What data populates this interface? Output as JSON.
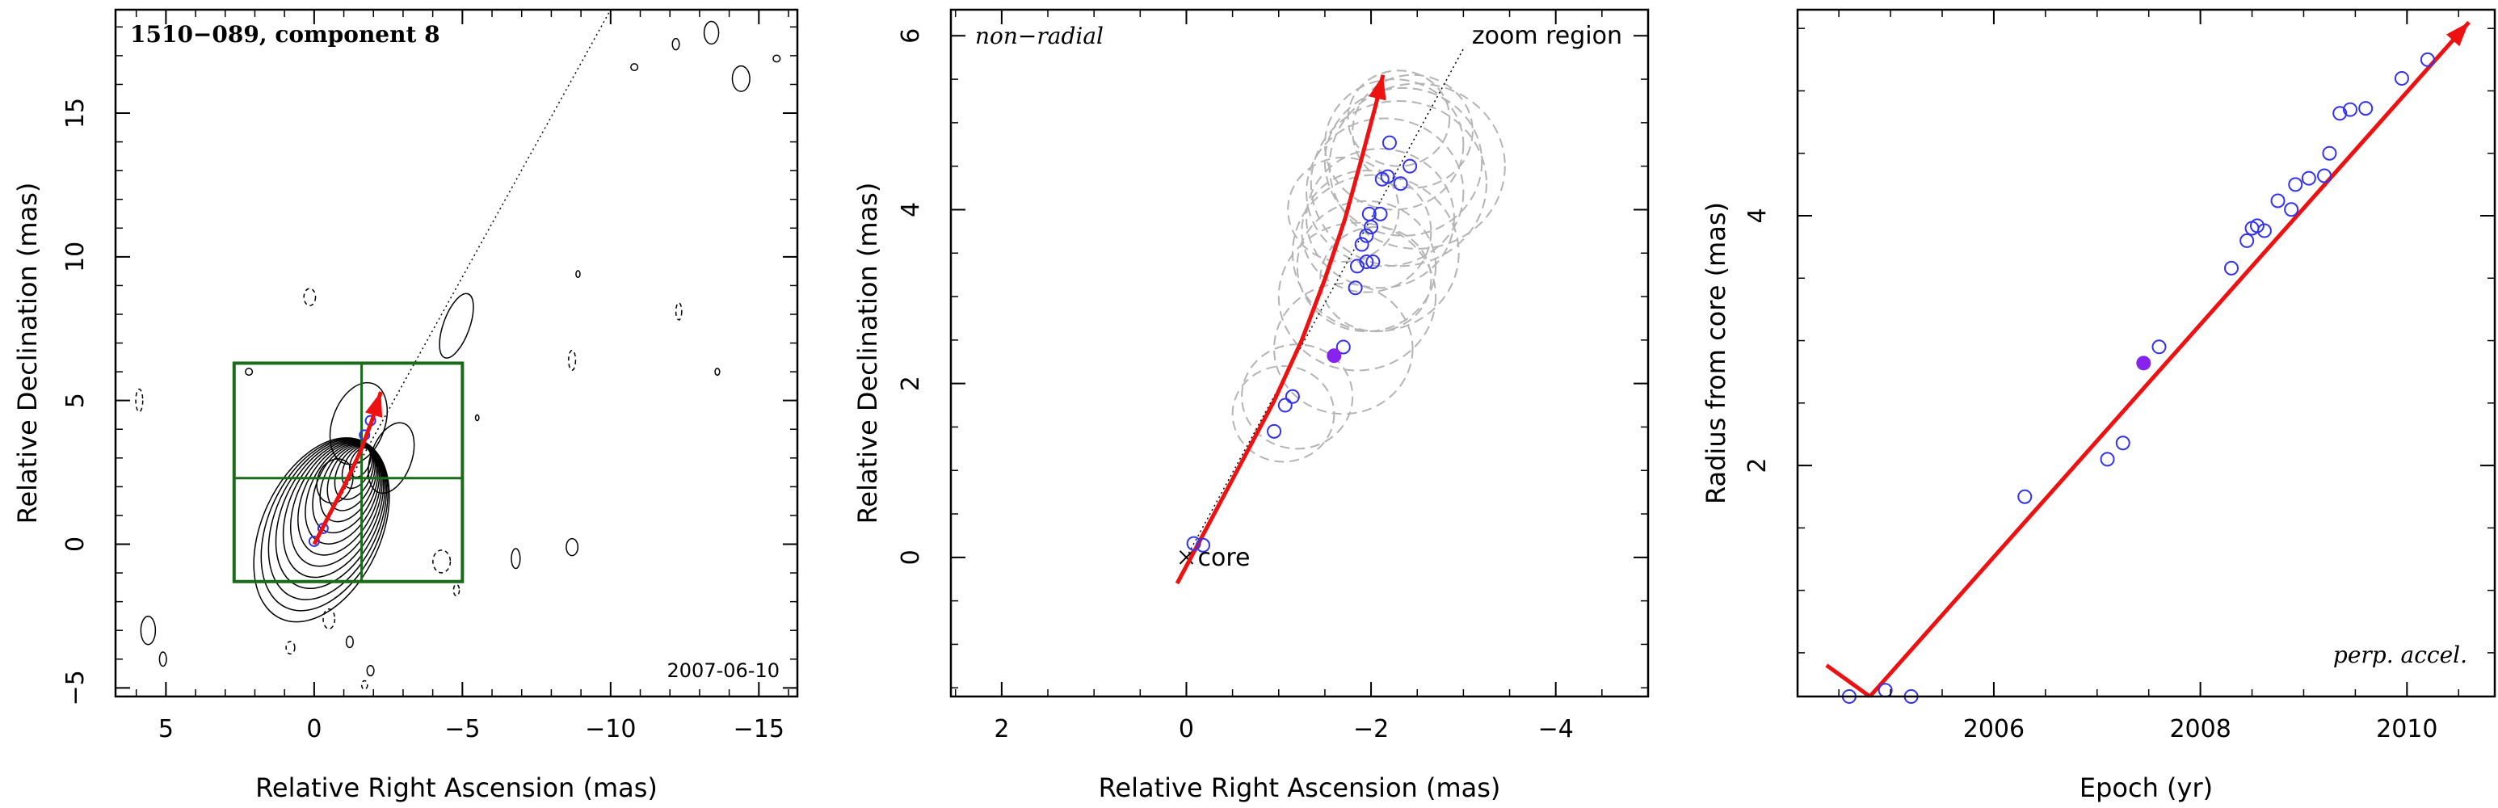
{
  "chart_data": [
    {
      "type": "scatter",
      "title": "1510−089, component 8",
      "xlabel": "Relative Right Ascension (mas)",
      "ylabel": "Relative Declination (mas)",
      "xlim": [
        6.7,
        -16.3
      ],
      "ylim": [
        -5.3,
        18.6
      ],
      "xticks": [
        5,
        0,
        -5,
        -10,
        -15
      ],
      "yticks": [
        -5,
        0,
        5,
        10,
        15
      ],
      "epoch_label": "2007-06-10",
      "zoom_box": {
        "x": [
          2.7,
          -5.0
        ],
        "y": [
          -1.3,
          6.3
        ],
        "x_divider": -1.6,
        "y_divider": 2.3
      },
      "direction_line": {
        "from": [
          0.0,
          0.0
        ],
        "to": [
          -10.0,
          18.6
        ]
      },
      "trajectory": [
        [
          0.0,
          0.0
        ],
        [
          -0.5,
          1.0
        ],
        [
          -1.05,
          2.1
        ],
        [
          -1.55,
          3.2
        ],
        [
          -1.95,
          4.3
        ],
        [
          -2.25,
          5.3
        ]
      ],
      "points": [
        [
          0.0,
          0.1
        ],
        [
          -0.3,
          0.55
        ],
        [
          -1.7,
          3.8
        ],
        [
          -1.9,
          4.3
        ]
      ],
      "colors": {
        "contour": "#000000",
        "trajectory": "#ee1111",
        "box": "#1a6b1a",
        "points": "#3333ee"
      }
    },
    {
      "type": "scatter",
      "xlabel": "Relative Right Ascension (mas)",
      "ylabel": "Relative Declination (mas)",
      "xlim": [
        2.55,
        -5.0
      ],
      "ylim": [
        -1.6,
        6.3
      ],
      "xticks": [
        2,
        0,
        -2,
        -4
      ],
      "yticks": [
        0,
        2,
        4,
        6
      ],
      "annotation_left": "non−radial",
      "annotation_right": "zoom region",
      "core_label": "core",
      "direction_line": {
        "from": [
          0.0,
          0.0
        ],
        "to": [
          -3.0,
          5.85
        ]
      },
      "trajectory": [
        [
          0.1,
          -0.3
        ],
        [
          -0.25,
          0.4
        ],
        [
          -0.6,
          1.1
        ],
        [
          -0.95,
          1.8
        ],
        [
          -1.25,
          2.5
        ],
        [
          -1.5,
          3.2
        ],
        [
          -1.72,
          3.9
        ],
        [
          -1.9,
          4.6
        ],
        [
          -2.05,
          5.2
        ],
        [
          -2.13,
          5.55
        ]
      ],
      "points": [
        [
          -0.08,
          0.16
        ],
        [
          -0.18,
          0.14
        ],
        [
          -0.95,
          1.45
        ],
        [
          -1.07,
          1.75
        ],
        [
          -1.15,
          1.85
        ],
        [
          -1.7,
          2.42
        ],
        [
          -1.83,
          3.1
        ],
        [
          -1.85,
          3.35
        ],
        [
          -1.95,
          3.4
        ],
        [
          -2.02,
          3.4
        ],
        [
          -1.9,
          3.6
        ],
        [
          -1.95,
          3.7
        ],
        [
          -2.0,
          3.8
        ],
        [
          -1.98,
          3.95
        ],
        [
          -2.1,
          3.95
        ],
        [
          -2.12,
          4.35
        ],
        [
          -2.18,
          4.38
        ],
        [
          -2.32,
          4.3
        ],
        [
          -2.42,
          4.5
        ],
        [
          -2.2,
          4.77
        ]
      ],
      "highlight_point": [
        -1.6,
        2.32
      ],
      "uncertainty_circles": [
        {
          "x": -1.05,
          "y": 1.65,
          "r": 0.55
        },
        {
          "x": -1.2,
          "y": 1.85,
          "r": 0.6
        },
        {
          "x": -1.7,
          "y": 2.4,
          "r": 0.75
        },
        {
          "x": -1.85,
          "y": 3.0,
          "r": 0.85
        },
        {
          "x": -1.95,
          "y": 3.35,
          "r": 0.75
        },
        {
          "x": -2.05,
          "y": 3.5,
          "r": 0.9
        },
        {
          "x": -1.95,
          "y": 3.75,
          "r": 0.7
        },
        {
          "x": -2.1,
          "y": 3.9,
          "r": 0.8
        },
        {
          "x": -2.15,
          "y": 4.2,
          "r": 0.85
        },
        {
          "x": -2.3,
          "y": 4.3,
          "r": 0.95
        },
        {
          "x": -2.35,
          "y": 4.55,
          "r": 0.85
        },
        {
          "x": -2.25,
          "y": 4.75,
          "r": 0.75
        },
        {
          "x": -2.5,
          "y": 4.5,
          "r": 0.95
        },
        {
          "x": -2.45,
          "y": 4.9,
          "r": 0.65
        },
        {
          "x": -2.3,
          "y": 5.05,
          "r": 0.55
        },
        {
          "x": -2.05,
          "y": 3.2,
          "r": 0.6
        },
        {
          "x": -1.7,
          "y": 4.0,
          "r": 0.6
        }
      ],
      "colors": {
        "trajectory": "#ee1111",
        "points": "#3333ee",
        "highlight": "#8822ee",
        "circles": "#b4b4b4"
      }
    },
    {
      "type": "scatter",
      "xlabel": "Epoch (yr)",
      "ylabel": "Radius from core (mas)",
      "xlim": [
        2004.1,
        2010.85
      ],
      "ylim": [
        0.15,
        5.65
      ],
      "xticks": [
        2006,
        2008,
        2010
      ],
      "yticks": [
        2,
        4
      ],
      "annotation": "perp. accel.",
      "fit_line": [
        [
          2004.8,
          0.15
        ],
        [
          2010.6,
          5.55
        ]
      ],
      "fit_hook": [
        [
          2004.38,
          0.4
        ],
        [
          2004.8,
          0.15
        ]
      ],
      "points": [
        [
          2004.6,
          0.15
        ],
        [
          2004.95,
          0.2
        ],
        [
          2005.2,
          0.15
        ],
        [
          2006.3,
          1.75
        ],
        [
          2007.1,
          2.05
        ],
        [
          2007.25,
          2.18
        ],
        [
          2007.6,
          2.95
        ],
        [
          2008.3,
          3.58
        ],
        [
          2008.45,
          3.8
        ],
        [
          2008.5,
          3.9
        ],
        [
          2008.55,
          3.92
        ],
        [
          2008.62,
          3.88
        ],
        [
          2008.75,
          4.12
        ],
        [
          2008.88,
          4.05
        ],
        [
          2008.92,
          4.25
        ],
        [
          2009.05,
          4.3
        ],
        [
          2009.2,
          4.32
        ],
        [
          2009.25,
          4.5
        ],
        [
          2009.35,
          4.82
        ],
        [
          2009.45,
          4.85
        ],
        [
          2009.6,
          4.86
        ],
        [
          2009.95,
          5.1
        ],
        [
          2010.2,
          5.25
        ]
      ],
      "highlight_point": [
        2007.45,
        2.82
      ],
      "colors": {
        "fit": "#ee1111",
        "points": "#3333ee",
        "highlight": "#8822ee"
      }
    }
  ]
}
